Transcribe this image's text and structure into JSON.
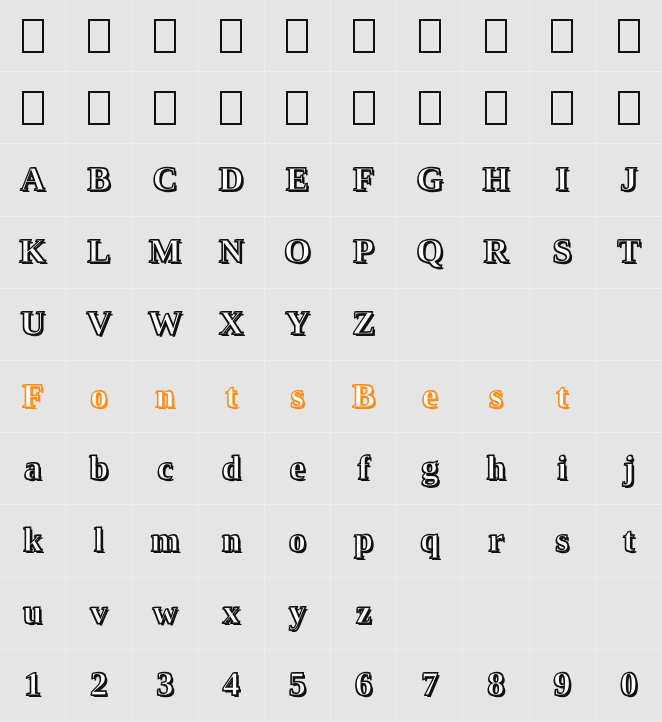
{
  "grid": {
    "cols": 10,
    "rows": 10,
    "background_color": "#e5e5e5",
    "cell_border_color": "#ececec",
    "glyph_color_default": "#111111",
    "glyph_color_accent": "#ff8c1a",
    "glyph_fontsize": 34,
    "tofu_box": {
      "width": 22,
      "height": 34,
      "border_width": 2,
      "border_color": "#111111"
    },
    "rows_data": [
      [
        {
          "type": "tofu"
        },
        {
          "type": "tofu"
        },
        {
          "type": "tofu"
        },
        {
          "type": "tofu"
        },
        {
          "type": "tofu"
        },
        {
          "type": "tofu"
        },
        {
          "type": "tofu"
        },
        {
          "type": "tofu"
        },
        {
          "type": "tofu"
        },
        {
          "type": "tofu"
        }
      ],
      [
        {
          "type": "tofu"
        },
        {
          "type": "tofu"
        },
        {
          "type": "tofu"
        },
        {
          "type": "tofu"
        },
        {
          "type": "tofu"
        },
        {
          "type": "tofu"
        },
        {
          "type": "tofu"
        },
        {
          "type": "tofu"
        },
        {
          "type": "tofu"
        },
        {
          "type": "tofu"
        }
      ],
      [
        {
          "type": "glyph",
          "char": "A"
        },
        {
          "type": "glyph",
          "char": "B"
        },
        {
          "type": "glyph",
          "char": "C"
        },
        {
          "type": "glyph",
          "char": "D"
        },
        {
          "type": "glyph",
          "char": "E"
        },
        {
          "type": "glyph",
          "char": "F"
        },
        {
          "type": "glyph",
          "char": "G"
        },
        {
          "type": "glyph",
          "char": "H"
        },
        {
          "type": "glyph",
          "char": "I"
        },
        {
          "type": "glyph",
          "char": "J"
        }
      ],
      [
        {
          "type": "glyph",
          "char": "K"
        },
        {
          "type": "glyph",
          "char": "L"
        },
        {
          "type": "glyph",
          "char": "M"
        },
        {
          "type": "glyph",
          "char": "N"
        },
        {
          "type": "glyph",
          "char": "O"
        },
        {
          "type": "glyph",
          "char": "P"
        },
        {
          "type": "glyph",
          "char": "Q"
        },
        {
          "type": "glyph",
          "char": "R"
        },
        {
          "type": "glyph",
          "char": "S"
        },
        {
          "type": "glyph",
          "char": "T"
        }
      ],
      [
        {
          "type": "glyph",
          "char": "U"
        },
        {
          "type": "glyph",
          "char": "V"
        },
        {
          "type": "glyph",
          "char": "W"
        },
        {
          "type": "glyph",
          "char": "X"
        },
        {
          "type": "glyph",
          "char": "Y"
        },
        {
          "type": "glyph",
          "char": "Z"
        },
        {
          "type": "empty"
        },
        {
          "type": "empty"
        },
        {
          "type": "empty"
        },
        {
          "type": "empty"
        }
      ],
      [
        {
          "type": "glyph",
          "char": "F",
          "accent": true
        },
        {
          "type": "glyph",
          "char": "o",
          "accent": true
        },
        {
          "type": "glyph",
          "char": "n",
          "accent": true
        },
        {
          "type": "glyph",
          "char": "t",
          "accent": true
        },
        {
          "type": "glyph",
          "char": "s",
          "accent": true
        },
        {
          "type": "glyph",
          "char": "B",
          "accent": true
        },
        {
          "type": "glyph",
          "char": "e",
          "accent": true
        },
        {
          "type": "glyph",
          "char": "s",
          "accent": true
        },
        {
          "type": "glyph",
          "char": "t",
          "accent": true
        },
        {
          "type": "empty"
        }
      ],
      [
        {
          "type": "glyph",
          "char": "a"
        },
        {
          "type": "glyph",
          "char": "b"
        },
        {
          "type": "glyph",
          "char": "c"
        },
        {
          "type": "glyph",
          "char": "d"
        },
        {
          "type": "glyph",
          "char": "e"
        },
        {
          "type": "glyph",
          "char": "f"
        },
        {
          "type": "glyph",
          "char": "g"
        },
        {
          "type": "glyph",
          "char": "h"
        },
        {
          "type": "glyph",
          "char": "i"
        },
        {
          "type": "glyph",
          "char": "j"
        }
      ],
      [
        {
          "type": "glyph",
          "char": "k"
        },
        {
          "type": "glyph",
          "char": "l"
        },
        {
          "type": "glyph",
          "char": "m"
        },
        {
          "type": "glyph",
          "char": "n"
        },
        {
          "type": "glyph",
          "char": "o"
        },
        {
          "type": "glyph",
          "char": "p"
        },
        {
          "type": "glyph",
          "char": "q"
        },
        {
          "type": "glyph",
          "char": "r"
        },
        {
          "type": "glyph",
          "char": "s"
        },
        {
          "type": "glyph",
          "char": "t"
        }
      ],
      [
        {
          "type": "glyph",
          "char": "u"
        },
        {
          "type": "glyph",
          "char": "v"
        },
        {
          "type": "glyph",
          "char": "w"
        },
        {
          "type": "glyph",
          "char": "x"
        },
        {
          "type": "glyph",
          "char": "y"
        },
        {
          "type": "glyph",
          "char": "z"
        },
        {
          "type": "empty"
        },
        {
          "type": "empty"
        },
        {
          "type": "empty"
        },
        {
          "type": "empty"
        }
      ],
      [
        {
          "type": "glyph",
          "char": "1"
        },
        {
          "type": "glyph",
          "char": "2"
        },
        {
          "type": "glyph",
          "char": "3"
        },
        {
          "type": "glyph",
          "char": "4"
        },
        {
          "type": "glyph",
          "char": "5"
        },
        {
          "type": "glyph",
          "char": "6"
        },
        {
          "type": "glyph",
          "char": "7"
        },
        {
          "type": "glyph",
          "char": "8"
        },
        {
          "type": "glyph",
          "char": "9"
        },
        {
          "type": "glyph",
          "char": "0"
        }
      ]
    ]
  }
}
